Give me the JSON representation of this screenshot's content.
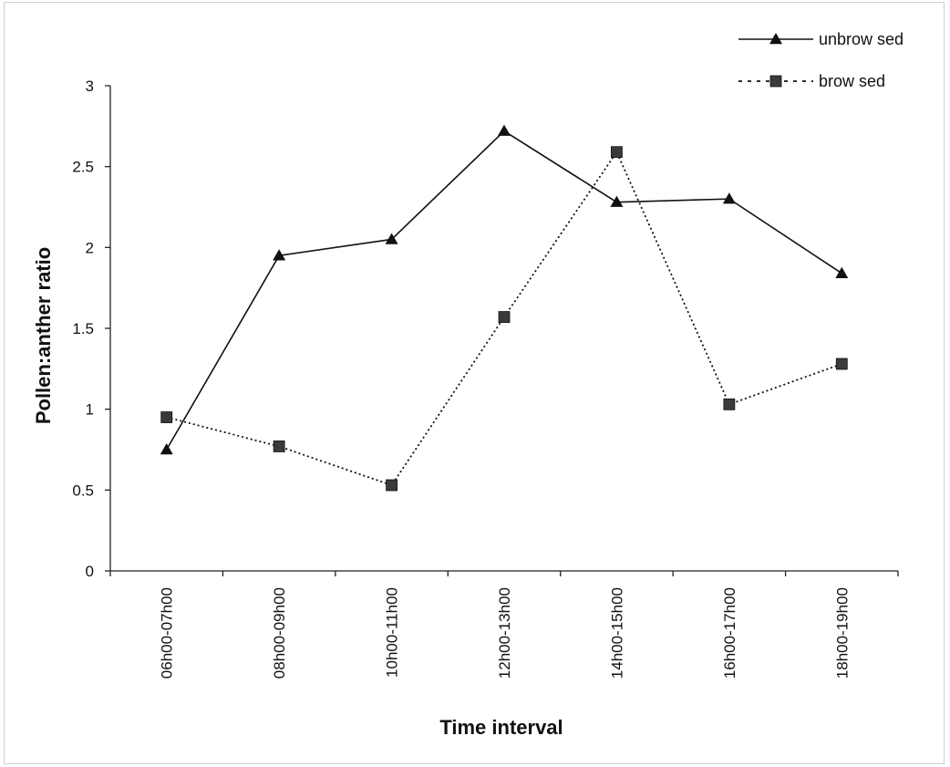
{
  "chart_data": {
    "type": "line",
    "title": "",
    "xlabel": "Time interval",
    "ylabel": "Pollen:anther ratio",
    "categories": [
      "06h00-07h00",
      "08h00-09h00",
      "10h00-11h00",
      "12h00-13h00",
      "14h00-15h00",
      "16h00-17h00",
      "18h00-19h00"
    ],
    "ylim": [
      0,
      3
    ],
    "yticks": [
      "0",
      "0.5",
      "1",
      "1.5",
      "2",
      "2.5",
      "3"
    ],
    "grid": false,
    "legend_position": "top-right",
    "series": [
      {
        "name": "unbrow sed",
        "marker": "triangle",
        "line": "solid",
        "color": "#111111",
        "values": [
          0.75,
          1.95,
          2.05,
          2.72,
          2.28,
          2.3,
          1.84
        ]
      },
      {
        "name": "brow sed",
        "marker": "square",
        "line": "dotted",
        "color": "#111111",
        "values": [
          0.95,
          0.77,
          0.53,
          1.57,
          2.59,
          1.03,
          1.28
        ]
      }
    ]
  }
}
